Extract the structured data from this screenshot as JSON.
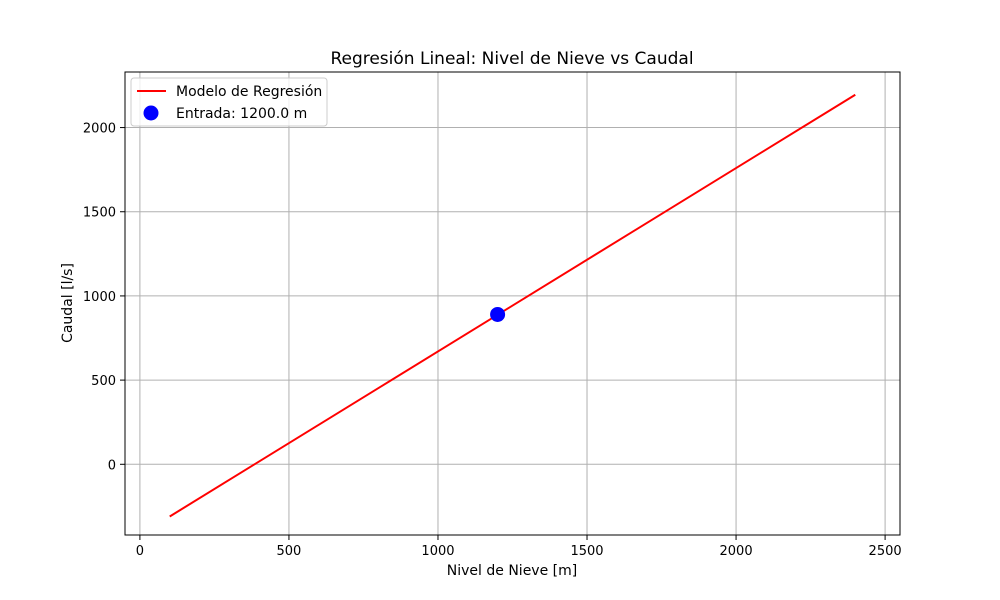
{
  "chart_data": {
    "type": "line",
    "title": "Regresión Lineal: Nivel de Nieve vs Caudal",
    "xlabel": "Nivel de Nieve [m]",
    "ylabel": "Caudal [l/s]",
    "xlim": [
      -50,
      2550
    ],
    "ylim": [
      -420,
      2330
    ],
    "xticks": [
      0,
      500,
      1000,
      1500,
      2000,
      2500
    ],
    "yticks": [
      0,
      500,
      1000,
      1500,
      2000
    ],
    "grid": true,
    "legend_position": "top-left",
    "series": [
      {
        "name": "Modelo de Regresión",
        "kind": "line",
        "color": "#ff0000",
        "x": [
          100,
          2400
        ],
        "y": [
          -310,
          2195
        ]
      },
      {
        "name": "Entrada: 1200.0 m",
        "kind": "scatter",
        "color": "#0000ff",
        "x": [
          1200
        ],
        "y": [
          890
        ]
      }
    ]
  }
}
